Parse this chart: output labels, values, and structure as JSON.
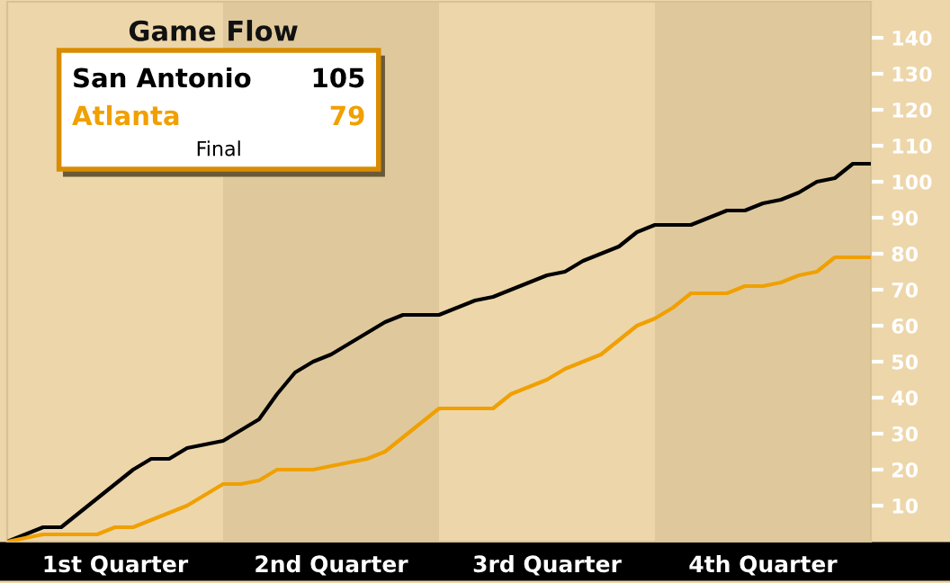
{
  "chart_data": {
    "type": "line",
    "title": "Game Flow",
    "categories": [
      null,
      null,
      null,
      null,
      null,
      null,
      null,
      null,
      null,
      null,
      null,
      null,
      null,
      null,
      null,
      null,
      null,
      null,
      null,
      null,
      null,
      null,
      null,
      null,
      null,
      null,
      null,
      null,
      null,
      null,
      null,
      null,
      null,
      null,
      null,
      null,
      null,
      null,
      null,
      null,
      null,
      null,
      null,
      null,
      null,
      null,
      null,
      null,
      null
    ],
    "series": [
      {
        "name": "San Antonio",
        "color": "#000000",
        "values": [
          0,
          2,
          4,
          4,
          8,
          12,
          16,
          20,
          23,
          23,
          26,
          27,
          28,
          31,
          34,
          41,
          47,
          50,
          52,
          55,
          58,
          61,
          63,
          63,
          63,
          65,
          67,
          68,
          70,
          72,
          74,
          75,
          78,
          80,
          82,
          86,
          88,
          88,
          88,
          90,
          92,
          92,
          94,
          95,
          97,
          100,
          101,
          105,
          105
        ]
      },
      {
        "name": "Atlanta",
        "color": "#f0a000",
        "values": [
          0,
          1,
          2,
          2,
          2,
          2,
          4,
          4,
          6,
          8,
          10,
          13,
          16,
          16,
          17,
          20,
          20,
          20,
          21,
          22,
          23,
          25,
          29,
          33,
          37,
          37,
          37,
          37,
          41,
          43,
          45,
          48,
          50,
          52,
          56,
          60,
          62,
          65,
          69,
          69,
          69,
          71,
          71,
          72,
          74,
          75,
          79,
          79,
          79
        ]
      }
    ],
    "annotations": [
      "105",
      "79",
      "Final",
      "1st Quarter",
      "2nd Quarter",
      "3rd Quarter",
      "4th Quarter"
    ],
    "ylim": [
      0,
      150
    ],
    "yticks": [
      10,
      20,
      30,
      40,
      50,
      60,
      70,
      80,
      90,
      100,
      110,
      120,
      130,
      140
    ],
    "tick_labels": "y",
    "grid": false
  }
}
